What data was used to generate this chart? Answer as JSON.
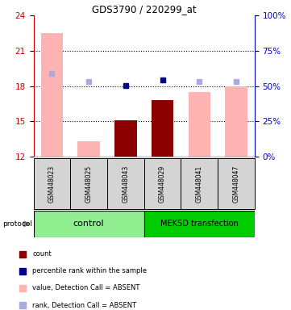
{
  "title": "GDS3790 / 220299_at",
  "samples": [
    "GSM448023",
    "GSM448025",
    "GSM448043",
    "GSM448029",
    "GSM448041",
    "GSM448047"
  ],
  "ylim_left": [
    12,
    24
  ],
  "ylim_right": [
    0,
    100
  ],
  "yticks_left": [
    12,
    15,
    18,
    21,
    24
  ],
  "yticks_right": [
    0,
    25,
    50,
    75,
    100
  ],
  "ytick_labels_right": [
    "0%",
    "25%",
    "50%",
    "75%",
    "100%"
  ],
  "bar_values": [
    22.5,
    13.3,
    15.1,
    16.8,
    17.5,
    18.0
  ],
  "bar_absent": [
    true,
    true,
    false,
    false,
    true,
    true
  ],
  "dot_rank_values": [
    19.1,
    18.35,
    18.05,
    18.5,
    18.35,
    18.4
  ],
  "dot_rank_absent": [
    true,
    true,
    false,
    false,
    true,
    true
  ],
  "bar_color_absent": "#ffb3b3",
  "bar_color_count": "#8b0000",
  "dot_color_absent": "#aaaadd",
  "dot_color_present": "#00008b",
  "color_left_axis": "#cc0000",
  "color_right_axis": "#0000cc",
  "color_box_gray": "#d4d4d4",
  "color_group_light_green": "#90EE90",
  "color_group_dark_green": "#00cc00",
  "background_color": "#ffffff",
  "legend_items": [
    {
      "label": "count",
      "color": "#8b0000"
    },
    {
      "label": "percentile rank within the sample",
      "color": "#00008b"
    },
    {
      "label": "value, Detection Call = ABSENT",
      "color": "#ffb3b3"
    },
    {
      "label": "rank, Detection Call = ABSENT",
      "color": "#aaaadd"
    }
  ]
}
